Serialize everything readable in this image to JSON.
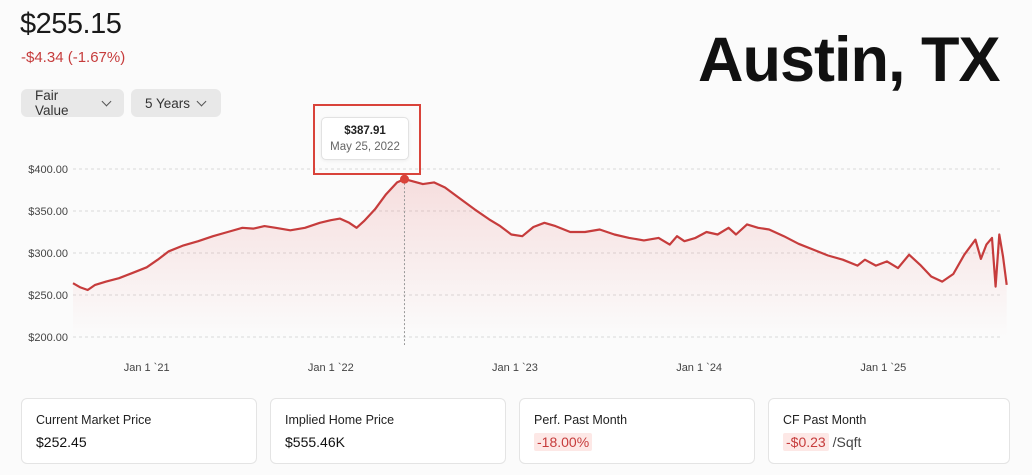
{
  "header": {
    "price": "$255.15",
    "change": "-$4.34 (-1.67%)",
    "city": "Austin, TX"
  },
  "controls": {
    "metric_label": "Fair Value",
    "range_label": "5 Years"
  },
  "tooltip": {
    "value": "$387.91",
    "date": "May 25, 2022"
  },
  "cards": [
    {
      "label": "Current Market Price",
      "value": "$252.45"
    },
    {
      "label": "Implied Home Price",
      "value": "$555.46K"
    },
    {
      "label": "Perf. Past Month",
      "value": "-18.00%"
    },
    {
      "label": "CF Past Month",
      "value": "-$0.23",
      "unit": "/Sqft"
    }
  ],
  "colors": {
    "line": "#c63c3c",
    "negative": "#c63c3c",
    "highlight": "#d9433a"
  },
  "chart_data": {
    "type": "area",
    "ylim": [
      200,
      400
    ],
    "xlim": [
      2020.6,
      2025.65
    ],
    "yticks": [
      400,
      350,
      300,
      250,
      200
    ],
    "ytick_labels": [
      "$400.00",
      "$350.00",
      "$300.00",
      "$250.00",
      "$200.00"
    ],
    "xticks": [
      2021.0,
      2022.0,
      2023.0,
      2024.0,
      2025.0
    ],
    "xtick_labels": [
      "Jan 1 `21",
      "Jan 1 `22",
      "Jan 1 `23",
      "Jan 1 `24",
      "Jan 1 `25"
    ],
    "grid": true,
    "highlight_point": {
      "x": 2022.4,
      "y": 387.91
    },
    "series": [
      {
        "values": [
          [
            2020.6,
            264
          ],
          [
            2020.64,
            259
          ],
          [
            2020.68,
            256
          ],
          [
            2020.72,
            262
          ],
          [
            2020.78,
            266
          ],
          [
            2020.85,
            270
          ],
          [
            2020.92,
            276
          ],
          [
            2021.0,
            283
          ],
          [
            2021.06,
            292
          ],
          [
            2021.12,
            302
          ],
          [
            2021.2,
            309
          ],
          [
            2021.28,
            314
          ],
          [
            2021.36,
            320
          ],
          [
            2021.44,
            325
          ],
          [
            2021.52,
            330
          ],
          [
            2021.58,
            329
          ],
          [
            2021.64,
            332
          ],
          [
            2021.7,
            330
          ],
          [
            2021.78,
            327
          ],
          [
            2021.86,
            330
          ],
          [
            2021.94,
            336
          ],
          [
            2022.0,
            339
          ],
          [
            2022.05,
            341
          ],
          [
            2022.1,
            336
          ],
          [
            2022.14,
            330
          ],
          [
            2022.18,
            338
          ],
          [
            2022.24,
            352
          ],
          [
            2022.3,
            370
          ],
          [
            2022.36,
            384
          ],
          [
            2022.4,
            388
          ],
          [
            2022.45,
            385
          ],
          [
            2022.5,
            382
          ],
          [
            2022.56,
            384
          ],
          [
            2022.62,
            378
          ],
          [
            2022.7,
            365
          ],
          [
            2022.78,
            352
          ],
          [
            2022.86,
            340
          ],
          [
            2022.92,
            332
          ],
          [
            2022.98,
            322
          ],
          [
            2023.04,
            320
          ],
          [
            2023.1,
            331
          ],
          [
            2023.16,
            336
          ],
          [
            2023.22,
            332
          ],
          [
            2023.3,
            325
          ],
          [
            2023.38,
            325
          ],
          [
            2023.46,
            328
          ],
          [
            2023.54,
            322
          ],
          [
            2023.62,
            318
          ],
          [
            2023.7,
            315
          ],
          [
            2023.78,
            318
          ],
          [
            2023.84,
            310
          ],
          [
            2023.88,
            320
          ],
          [
            2023.92,
            314
          ],
          [
            2023.98,
            318
          ],
          [
            2024.04,
            325
          ],
          [
            2024.1,
            322
          ],
          [
            2024.16,
            330
          ],
          [
            2024.2,
            322
          ],
          [
            2024.26,
            334
          ],
          [
            2024.32,
            330
          ],
          [
            2024.38,
            328
          ],
          [
            2024.46,
            320
          ],
          [
            2024.54,
            311
          ],
          [
            2024.62,
            304
          ],
          [
            2024.7,
            297
          ],
          [
            2024.78,
            292
          ],
          [
            2024.86,
            285
          ],
          [
            2024.9,
            292
          ],
          [
            2024.96,
            285
          ],
          [
            2025.02,
            290
          ],
          [
            2025.08,
            282
          ],
          [
            2025.14,
            298
          ],
          [
            2025.2,
            286
          ],
          [
            2025.26,
            272
          ],
          [
            2025.32,
            266
          ],
          [
            2025.38,
            275
          ],
          [
            2025.44,
            298
          ],
          [
            2025.5,
            316
          ],
          [
            2025.53,
            293
          ],
          [
            2025.56,
            310
          ],
          [
            2025.59,
            318
          ],
          [
            2025.61,
            260
          ],
          [
            2025.63,
            322
          ],
          [
            2025.65,
            296
          ],
          [
            2025.67,
            262
          ]
        ]
      }
    ]
  }
}
